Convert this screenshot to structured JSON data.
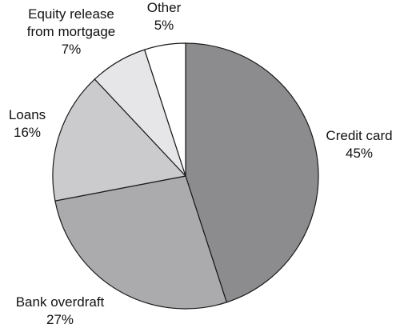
{
  "chart_data": {
    "type": "pie",
    "title": "",
    "slices": [
      {
        "label_lines": [
          "Credit card"
        ],
        "value": 45,
        "value_label": "45%",
        "color": "#8c8c8f"
      },
      {
        "label_lines": [
          "Bank overdraft"
        ],
        "value": 27,
        "value_label": "27%",
        "color": "#ababad"
      },
      {
        "label_lines": [
          "Loans"
        ],
        "value": 16,
        "value_label": "16%",
        "color": "#cbcbcd"
      },
      {
        "label_lines": [
          "Equity release",
          "from mortgage"
        ],
        "value": 7,
        "value_label": "7%",
        "color": "#e6e6e8"
      },
      {
        "label_lines": [
          "Other"
        ],
        "value": 5,
        "value_label": "5%",
        "color": "#ffffff"
      }
    ],
    "start_angle_deg": 0,
    "direction": "clockwise",
    "legend": "none"
  }
}
